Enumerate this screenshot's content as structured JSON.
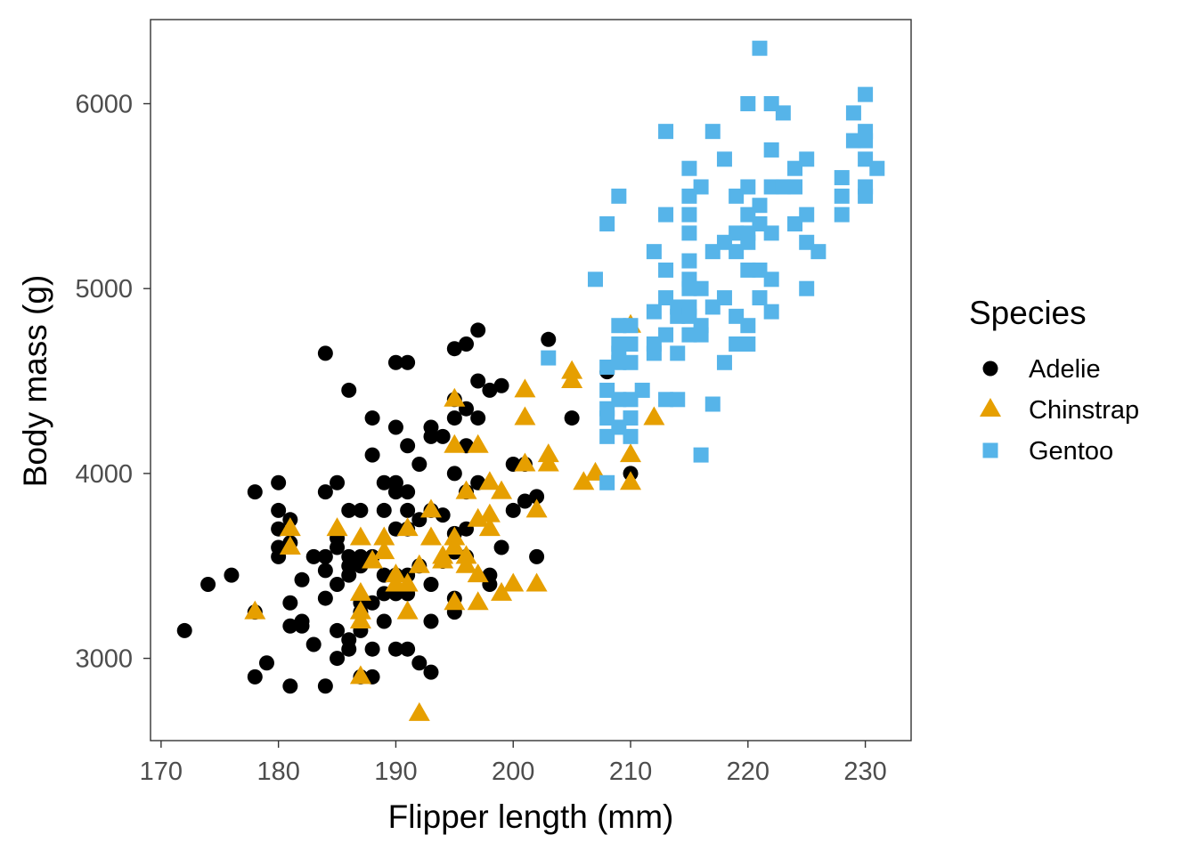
{
  "chart_data": {
    "type": "scatter",
    "title": "",
    "xlabel": "Flipper length (mm)",
    "ylabel": "Body mass (g)",
    "xlim": [
      169.1,
      233.9
    ],
    "ylim": [
      2555,
      6455
    ],
    "x_ticks": [
      170,
      180,
      190,
      200,
      210,
      220,
      230
    ],
    "y_ticks": [
      3000,
      4000,
      5000,
      6000
    ],
    "x_tick_labels": [
      "170",
      "180",
      "190",
      "200",
      "210",
      "220",
      "230"
    ],
    "y_tick_labels": [
      "3000",
      "4000",
      "5000",
      "6000"
    ],
    "grid": false,
    "legend": {
      "title": "Species",
      "position": "right"
    },
    "series": [
      {
        "name": "Adelie",
        "color": "#000000",
        "shape": "circle",
        "points": [
          [
            172,
            3150
          ],
          [
            174,
            3400
          ],
          [
            176,
            3450
          ],
          [
            178,
            3900
          ],
          [
            178,
            2900
          ],
          [
            178,
            3250
          ],
          [
            179,
            2975
          ],
          [
            180,
            3950
          ],
          [
            180,
            3800
          ],
          [
            180,
            3700
          ],
          [
            180,
            3600
          ],
          [
            180,
            3550
          ],
          [
            181,
            2850
          ],
          [
            181,
            3300
          ],
          [
            181,
            3175
          ],
          [
            181,
            3750
          ],
          [
            181,
            3625
          ],
          [
            182,
            3425
          ],
          [
            182,
            3200
          ],
          [
            182,
            3175
          ],
          [
            183,
            3550
          ],
          [
            183,
            3075
          ],
          [
            184,
            4650
          ],
          [
            184,
            3900
          ],
          [
            184,
            3550
          ],
          [
            184,
            3475
          ],
          [
            184,
            3325
          ],
          [
            184,
            2850
          ],
          [
            185,
            3950
          ],
          [
            185,
            3650
          ],
          [
            185,
            3600
          ],
          [
            185,
            3400
          ],
          [
            185,
            3150
          ],
          [
            185,
            3000
          ],
          [
            186,
            4450
          ],
          [
            186,
            3800
          ],
          [
            186,
            3500
          ],
          [
            186,
            3550
          ],
          [
            186,
            3450
          ],
          [
            186,
            3100
          ],
          [
            186,
            3050
          ],
          [
            187,
            3800
          ],
          [
            187,
            3550
          ],
          [
            187,
            3500
          ],
          [
            187,
            3300
          ],
          [
            187,
            3150
          ],
          [
            187,
            3250
          ],
          [
            187,
            2900
          ],
          [
            188,
            4300
          ],
          [
            188,
            4100
          ],
          [
            188,
            3550
          ],
          [
            188,
            3300
          ],
          [
            188,
            3050
          ],
          [
            188,
            2900
          ],
          [
            189,
            3950
          ],
          [
            189,
            3800
          ],
          [
            189,
            3450
          ],
          [
            189,
            3350
          ],
          [
            189,
            3200
          ],
          [
            190,
            4600
          ],
          [
            190,
            4250
          ],
          [
            190,
            3950
          ],
          [
            190,
            3900
          ],
          [
            190,
            3700
          ],
          [
            190,
            3450
          ],
          [
            190,
            3350
          ],
          [
            190,
            3050
          ],
          [
            191,
            4600
          ],
          [
            191,
            4150
          ],
          [
            191,
            3900
          ],
          [
            191,
            3800
          ],
          [
            191,
            3700
          ],
          [
            191,
            3450
          ],
          [
            191,
            3350
          ],
          [
            191,
            3050
          ],
          [
            192,
            4050
          ],
          [
            192,
            3750
          ],
          [
            192,
            3500
          ],
          [
            192,
            2975
          ],
          [
            193,
            4250
          ],
          [
            193,
            4200
          ],
          [
            193,
            3800
          ],
          [
            193,
            3400
          ],
          [
            193,
            3200
          ],
          [
            193,
            2925
          ],
          [
            194,
            4200
          ],
          [
            194,
            3775
          ],
          [
            194,
            3525
          ],
          [
            195,
            4675
          ],
          [
            195,
            4400
          ],
          [
            195,
            4300
          ],
          [
            195,
            4000
          ],
          [
            195,
            3675
          ],
          [
            195,
            3575
          ],
          [
            195,
            3325
          ],
          [
            195,
            3250
          ],
          [
            196,
            4700
          ],
          [
            196,
            4350
          ],
          [
            196,
            4150
          ],
          [
            196,
            3900
          ],
          [
            196,
            3550
          ],
          [
            196,
            3700
          ],
          [
            197,
            4775
          ],
          [
            197,
            4500
          ],
          [
            197,
            4300
          ],
          [
            197,
            3950
          ],
          [
            198,
            4450
          ],
          [
            198,
            3450
          ],
          [
            198,
            3400
          ],
          [
            199,
            4475
          ],
          [
            199,
            3600
          ],
          [
            200,
            4050
          ],
          [
            200,
            3800
          ],
          [
            201,
            4050
          ],
          [
            201,
            3850
          ],
          [
            202,
            3875
          ],
          [
            202,
            3550
          ],
          [
            203,
            4725
          ],
          [
            205,
            4300
          ],
          [
            208,
            4550
          ],
          [
            210,
            4000
          ]
        ]
      },
      {
        "name": "Chinstrap",
        "color": "#e69f00",
        "shape": "triangle",
        "points": [
          [
            178,
            3250
          ],
          [
            181,
            3600
          ],
          [
            181,
            3700
          ],
          [
            185,
            3700
          ],
          [
            187,
            3650
          ],
          [
            187,
            3350
          ],
          [
            187,
            3250
          ],
          [
            187,
            3200
          ],
          [
            187,
            2900
          ],
          [
            188,
            3525
          ],
          [
            189,
            3650
          ],
          [
            189,
            3575
          ],
          [
            190,
            3450
          ],
          [
            190,
            3400
          ],
          [
            191,
            3700
          ],
          [
            191,
            3400
          ],
          [
            191,
            3250
          ],
          [
            192,
            3500
          ],
          [
            192,
            2700
          ],
          [
            193,
            3800
          ],
          [
            193,
            3650
          ],
          [
            194,
            3525
          ],
          [
            194,
            3550
          ],
          [
            195,
            4400
          ],
          [
            195,
            4150
          ],
          [
            195,
            3650
          ],
          [
            195,
            3600
          ],
          [
            195,
            3300
          ],
          [
            196,
            3900
          ],
          [
            196,
            3550
          ],
          [
            196,
            3500
          ],
          [
            197,
            4150
          ],
          [
            197,
            3750
          ],
          [
            197,
            3450
          ],
          [
            197,
            3300
          ],
          [
            198,
            3950
          ],
          [
            198,
            3775
          ],
          [
            198,
            3700
          ],
          [
            199,
            3900
          ],
          [
            199,
            3350
          ],
          [
            200,
            3400
          ],
          [
            201,
            4450
          ],
          [
            201,
            4300
          ],
          [
            201,
            4050
          ],
          [
            202,
            3800
          ],
          [
            202,
            3400
          ],
          [
            203,
            4100
          ],
          [
            203,
            4050
          ],
          [
            205,
            4550
          ],
          [
            205,
            4500
          ],
          [
            206,
            3950
          ],
          [
            207,
            4000
          ],
          [
            210,
            4800
          ],
          [
            210,
            4100
          ],
          [
            210,
            3950
          ],
          [
            212,
            4300
          ]
        ]
      },
      {
        "name": "Gentoo",
        "color": "#56b4e9",
        "shape": "square",
        "points": [
          [
            203,
            4625
          ],
          [
            207,
            5050
          ],
          [
            208,
            5350
          ],
          [
            208,
            4575
          ],
          [
            208,
            4450
          ],
          [
            208,
            4350
          ],
          [
            208,
            4300
          ],
          [
            208,
            4200
          ],
          [
            208,
            3950
          ],
          [
            209,
            5500
          ],
          [
            209,
            4800
          ],
          [
            209,
            4700
          ],
          [
            209,
            4650
          ],
          [
            209,
            4600
          ],
          [
            209,
            4400
          ],
          [
            209,
            4250
          ],
          [
            210,
            4800
          ],
          [
            210,
            4700
          ],
          [
            210,
            4600
          ],
          [
            210,
            4400
          ],
          [
            210,
            4300
          ],
          [
            210,
            4200
          ],
          [
            211,
            4450
          ],
          [
            212,
            5200
          ],
          [
            212,
            4875
          ],
          [
            212,
            4700
          ],
          [
            212,
            4650
          ],
          [
            213,
            5850
          ],
          [
            213,
            5400
          ],
          [
            213,
            5100
          ],
          [
            213,
            4950
          ],
          [
            213,
            4750
          ],
          [
            213,
            4400
          ],
          [
            214,
            4900
          ],
          [
            214,
            4850
          ],
          [
            214,
            4650
          ],
          [
            214,
            4400
          ],
          [
            215,
            5650
          ],
          [
            215,
            5500
          ],
          [
            215,
            5400
          ],
          [
            215,
            5300
          ],
          [
            215,
            5150
          ],
          [
            215,
            5050
          ],
          [
            215,
            5000
          ],
          [
            215,
            4900
          ],
          [
            215,
            4850
          ],
          [
            215,
            4750
          ],
          [
            216,
            5550
          ],
          [
            216,
            5000
          ],
          [
            216,
            4800
          ],
          [
            216,
            4750
          ],
          [
            216,
            4100
          ],
          [
            217,
            5850
          ],
          [
            217,
            5200
          ],
          [
            217,
            4900
          ],
          [
            217,
            4375
          ],
          [
            218,
            5700
          ],
          [
            218,
            5250
          ],
          [
            218,
            4950
          ],
          [
            218,
            4600
          ],
          [
            219,
            5500
          ],
          [
            219,
            5300
          ],
          [
            219,
            5200
          ],
          [
            219,
            4850
          ],
          [
            219,
            4700
          ],
          [
            220,
            6000
          ],
          [
            220,
            5550
          ],
          [
            220,
            5400
          ],
          [
            220,
            5300
          ],
          [
            220,
            5250
          ],
          [
            220,
            5100
          ],
          [
            220,
            4800
          ],
          [
            220,
            4700
          ],
          [
            221,
            6300
          ],
          [
            221,
            5450
          ],
          [
            221,
            5350
          ],
          [
            221,
            5100
          ],
          [
            221,
            4950
          ],
          [
            222,
            6000
          ],
          [
            222,
            5750
          ],
          [
            222,
            5550
          ],
          [
            222,
            5300
          ],
          [
            222,
            5050
          ],
          [
            222,
            4875
          ],
          [
            223,
            5950
          ],
          [
            223,
            5550
          ],
          [
            224,
            5650
          ],
          [
            224,
            5550
          ],
          [
            224,
            5350
          ],
          [
            225,
            5700
          ],
          [
            225,
            5400
          ],
          [
            225,
            5250
          ],
          [
            225,
            5000
          ],
          [
            226,
            5200
          ],
          [
            228,
            5600
          ],
          [
            228,
            5500
          ],
          [
            228,
            5400
          ],
          [
            229,
            5950
          ],
          [
            229,
            5800
          ],
          [
            230,
            6050
          ],
          [
            230,
            5850
          ],
          [
            230,
            5800
          ],
          [
            230,
            5700
          ],
          [
            230,
            5550
          ],
          [
            230,
            5500
          ],
          [
            231,
            5650
          ]
        ]
      }
    ]
  }
}
